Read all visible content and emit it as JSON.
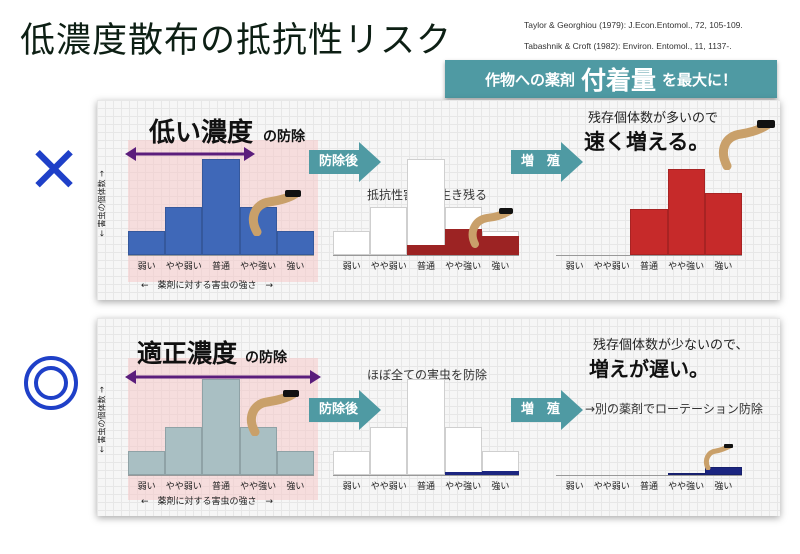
{
  "title": "低濃度散布の抵抗性リスク",
  "references": [
    "Taylor & Georghiou (1979): J.Econ.Entomol., 72, 105-109.",
    "Tabashnik & Croft (1982): Environ. Entomol.,  11, 1137-."
  ],
  "banner": {
    "pre": "作物への薬剤",
    "emph": "付着量",
    "post": "を最大に！"
  },
  "bad_mark": "✕",
  "good_mark": "◎",
  "categories": [
    "弱い",
    "やや弱い",
    "普通",
    "やや強い",
    "強い"
  ],
  "ylabel": "← 害虫の個体数 →",
  "xlabel": "←　薬剤に対する害虫の強さ　→",
  "low": {
    "heading_big": "低い濃度",
    "heading_small": "の防除",
    "arrow1": "防除後",
    "arrow2": "増　殖",
    "after_note": "抵抗性害虫が生き残る",
    "growth_note_small": "残存個体数が多いので",
    "growth_note_big": "速く増える。"
  },
  "good": {
    "heading_big": "適正濃度",
    "heading_small": "の防除",
    "arrow1": "防除後",
    "arrow2": "増　殖",
    "after_note": "ほぼ全ての害虫を防除",
    "growth_note_small": "残存個体数が少ないので、",
    "growth_note_big": "増えが遅い。",
    "growth_note_extra": "→別の薬剤でローテーション防除"
  },
  "colors": {
    "blue": "#3f68b8",
    "darkred": "#9c2323",
    "red": "#c62a2a",
    "teal": "#4f9aa3",
    "grayteal": "#a9bfc3",
    "purple": "#5b1d7c",
    "mark": "#1f40c8",
    "navy": "#1b2580"
  },
  "chart_data": [
    {
      "type": "bar",
      "id": "low-before",
      "categories": [
        "弱い",
        "やや弱い",
        "普通",
        "やや強い",
        "強い"
      ],
      "values": [
        1,
        2,
        4,
        2,
        1
      ],
      "kill_range": "弱い〜普通"
    },
    {
      "type": "bar",
      "id": "low-after",
      "categories": [
        "弱い",
        "やや弱い",
        "普通",
        "やや強い",
        "強い"
      ],
      "values": [
        1,
        2,
        4,
        2,
        1
      ],
      "survivors": [
        0,
        0,
        0.4,
        1.1,
        0.8
      ]
    },
    {
      "type": "bar",
      "id": "low-growth",
      "categories": [
        "弱い",
        "やや弱い",
        "普通",
        "やや強い",
        "強い"
      ],
      "values": [
        0,
        0,
        1.9,
        3.6,
        2.6
      ]
    },
    {
      "type": "bar",
      "id": "good-before",
      "categories": [
        "弱い",
        "やや弱い",
        "普通",
        "やや強い",
        "強い"
      ],
      "values": [
        1,
        2,
        4,
        2,
        1
      ],
      "kill_range": "弱い〜強い"
    },
    {
      "type": "bar",
      "id": "good-after",
      "categories": [
        "弱い",
        "やや弱い",
        "普通",
        "やや強い",
        "強い"
      ],
      "values": [
        1,
        2,
        4,
        2,
        1
      ],
      "survivors": [
        0,
        0,
        0,
        0.05,
        0.15
      ]
    },
    {
      "type": "bar",
      "id": "good-growth",
      "categories": [
        "弱い",
        "やや弱い",
        "普通",
        "やや強い",
        "強い"
      ],
      "values": [
        0,
        0,
        0,
        0.1,
        0.35
      ]
    }
  ]
}
